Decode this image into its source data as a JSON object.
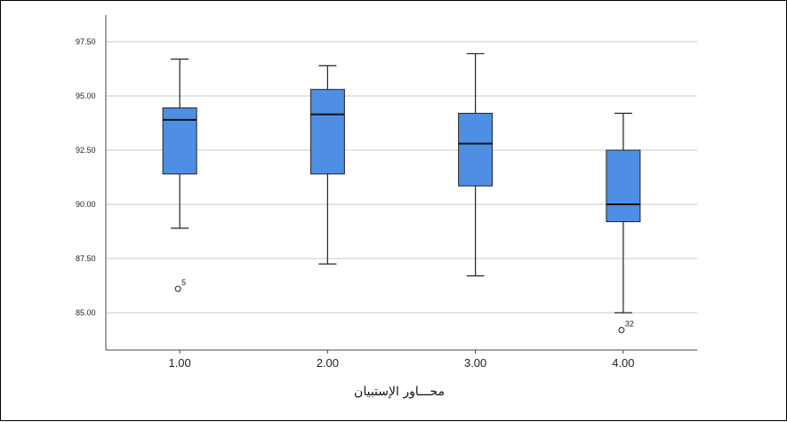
{
  "chart_data": {
    "type": "box",
    "xlabel": "محـــاور الإستبيان",
    "ylabel": "",
    "ylim": [
      83.5,
      98.8
    ],
    "yticks": [
      "85.00",
      "87.50",
      "90.00",
      "92.50",
      "95.00",
      "97.50"
    ],
    "categories": [
      "1.00",
      "2.00",
      "3.00",
      "4.00"
    ],
    "grid": "horizontal",
    "box_color": "#4f8fe3",
    "boxes": [
      {
        "category": "1.00",
        "min": 88.9,
        "q1": 91.4,
        "median": 93.9,
        "q3": 94.45,
        "max": 96.7,
        "outliers": [
          {
            "value": 86.1,
            "label": "5"
          }
        ]
      },
      {
        "category": "2.00",
        "min": 87.25,
        "q1": 91.4,
        "median": 94.15,
        "q3": 95.3,
        "max": 96.4,
        "outliers": []
      },
      {
        "category": "3.00",
        "min": 86.7,
        "q1": 90.85,
        "median": 92.8,
        "q3": 94.2,
        "max": 96.95,
        "outliers": []
      },
      {
        "category": "4.00",
        "min": 85.0,
        "q1": 89.2,
        "median": 90.0,
        "q3": 92.5,
        "max": 94.2,
        "outliers": [
          {
            "value": 84.2,
            "label": "32"
          }
        ]
      }
    ]
  }
}
